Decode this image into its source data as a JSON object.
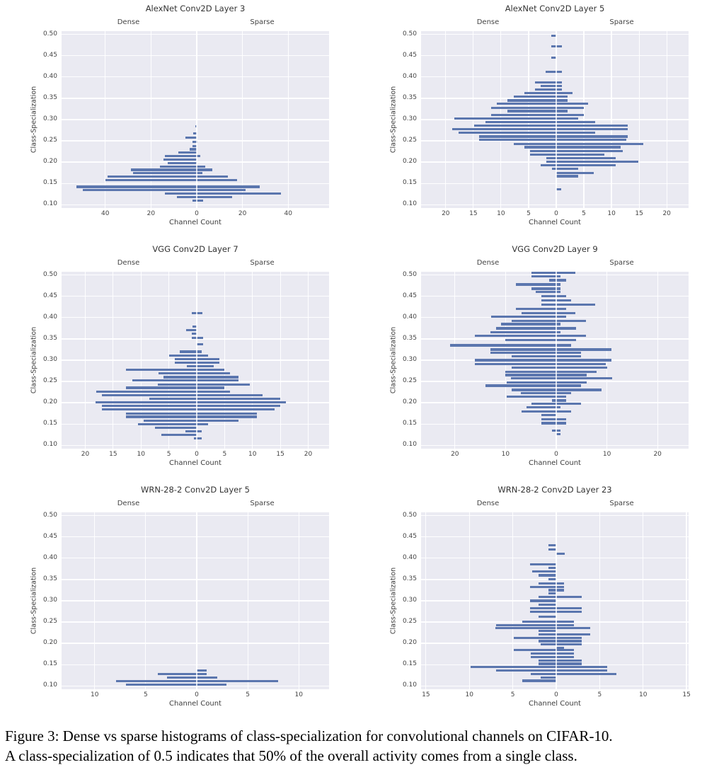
{
  "figure": {
    "caption_line1": "Figure 3: Dense vs sparse histograms of class-specialization for convolutional channels on CIFAR-10.",
    "caption_line2": "A class-specialization of 0.5 indicates that 50% of the overall activity comes from a single class."
  },
  "axes_common": {
    "left_header": "Dense",
    "right_header": "Sparse",
    "xlabel": "Channel Count",
    "ylabel": "Class-Specialization",
    "ylim": [
      0.092,
      0.508
    ],
    "ytick_labels": [
      "0.50",
      "0.45",
      "0.40",
      "0.35",
      "0.30",
      "0.25",
      "0.20",
      "0.15",
      "0.10"
    ],
    "grid": true,
    "colors": {
      "bar": "#5b76ae",
      "plot_background": "#eaeaf2",
      "gridline": "#ffffff",
      "title_text": "#333333",
      "tick_text": "#444444",
      "caption_text": "#000000",
      "page_background": "#ffffff"
    }
  },
  "chart_data": [
    {
      "type": "bar",
      "subtype": "diverging-horizontal-histogram",
      "title": "AlexNet Conv2D Layer 3",
      "xlabel": "Channel Count",
      "ylabel": "Class-Specialization",
      "dense_label": "Dense",
      "sparse_label": "Sparse",
      "xlim": [
        -58.5,
        58.5
      ],
      "xticks": [
        -40,
        -20,
        0,
        20,
        40
      ],
      "xtick_labels": [
        "40",
        "20",
        "0",
        "20",
        "40"
      ],
      "bins_format": [
        "class_specialization",
        "dense_count",
        "sparse_count"
      ],
      "bins": [
        [
          0.284,
          0.7,
          0
        ],
        [
          0.268,
          1.4,
          0
        ],
        [
          0.257,
          5.0,
          0
        ],
        [
          0.248,
          1.9,
          0.4
        ],
        [
          0.238,
          1.9,
          0
        ],
        [
          0.23,
          3.0,
          0
        ],
        [
          0.222,
          8.0,
          0
        ],
        [
          0.214,
          14.0,
          1.5
        ],
        [
          0.206,
          14.7,
          0
        ],
        [
          0.198,
          12.6,
          0
        ],
        [
          0.19,
          16.0,
          3.6
        ],
        [
          0.182,
          28.9,
          6.7
        ],
        [
          0.174,
          27.8,
          2.6
        ],
        [
          0.166,
          38.9,
          13.7
        ],
        [
          0.158,
          40.0,
          17.6
        ],
        [
          0.142,
          52.6,
          27.4
        ],
        [
          0.134,
          49.7,
          21.4
        ],
        [
          0.126,
          14.0,
          36.7
        ],
        [
          0.118,
          8.8,
          15.5
        ],
        [
          0.11,
          1.9,
          2.9
        ]
      ]
    },
    {
      "type": "bar",
      "subtype": "diverging-horizontal-histogram",
      "title": "AlexNet Conv2D Layer 5",
      "xlabel": "Channel Count",
      "ylabel": "Class-Specialization",
      "dense_label": "Dense",
      "sparse_label": "Sparse",
      "xlim": [
        -24.2,
        24.2
      ],
      "xticks": [
        -20,
        -15,
        -10,
        -5,
        0,
        5,
        10,
        15,
        20
      ],
      "xtick_labels": [
        "20",
        "15",
        "10",
        "5",
        "0",
        "5",
        "10",
        "15",
        "20"
      ],
      "bins_format": [
        "class_specialization",
        "dense_count",
        "sparse_count"
      ],
      "bins": [
        [
          0.497,
          0.9,
          0
        ],
        [
          0.472,
          0.9,
          1.0
        ],
        [
          0.446,
          0.9,
          0
        ],
        [
          0.412,
          1.9,
          1.0
        ],
        [
          0.387,
          3.9,
          1.0
        ],
        [
          0.379,
          2.8,
          1.0
        ],
        [
          0.371,
          3.8,
          1.0
        ],
        [
          0.362,
          5.8,
          3.0
        ],
        [
          0.354,
          7.7,
          2.0
        ],
        [
          0.345,
          8.8,
          2.0
        ],
        [
          0.337,
          10.8,
          5.8
        ],
        [
          0.328,
          11.8,
          5.0
        ],
        [
          0.32,
          8.8,
          2.0
        ],
        [
          0.311,
          11.8,
          5.0
        ],
        [
          0.303,
          18.5,
          4.0
        ],
        [
          0.294,
          12.8,
          7.0
        ],
        [
          0.286,
          14.8,
          12.9
        ],
        [
          0.277,
          18.8,
          12.9
        ],
        [
          0.269,
          17.7,
          7.0
        ],
        [
          0.26,
          13.9,
          12.9
        ],
        [
          0.252,
          13.9,
          12.7
        ],
        [
          0.243,
          7.7,
          15.8
        ],
        [
          0.235,
          5.8,
          11.7
        ],
        [
          0.226,
          4.7,
          12.0
        ],
        [
          0.218,
          4.7,
          8.7
        ],
        [
          0.209,
          1.8,
          10.8
        ],
        [
          0.201,
          1.8,
          14.8
        ],
        [
          0.192,
          2.8,
          10.8
        ],
        [
          0.184,
          0.8,
          4.0
        ],
        [
          0.175,
          0,
          6.8
        ],
        [
          0.167,
          0,
          4.0
        ],
        [
          0.136,
          0,
          0.9
        ]
      ]
    },
    {
      "type": "bar",
      "subtype": "diverging-horizontal-histogram",
      "title": "VGG Conv2D Layer 7",
      "xlabel": "Channel Count",
      "ylabel": "Class-Specialization",
      "dense_label": "Dense",
      "sparse_label": "Sparse",
      "xlim": [
        -24.0,
        24.0
      ],
      "xticks": [
        -20,
        -15,
        -10,
        -5,
        0,
        5,
        10,
        15,
        20
      ],
      "xtick_labels": [
        "20",
        "15",
        "10",
        "5",
        "0",
        "5",
        "10",
        "15",
        "20"
      ],
      "bins_format": [
        "class_specialization",
        "dense_count",
        "sparse_count"
      ],
      "bins": [
        [
          0.411,
          0.9,
          1.0
        ],
        [
          0.379,
          0.7,
          0
        ],
        [
          0.371,
          1.9,
          0
        ],
        [
          0.362,
          0.9,
          0
        ],
        [
          0.353,
          0.9,
          1.1
        ],
        [
          0.337,
          0,
          1.1
        ],
        [
          0.32,
          3.0,
          0.9
        ],
        [
          0.311,
          5.0,
          2.0
        ],
        [
          0.303,
          4.0,
          4.0
        ],
        [
          0.294,
          4.0,
          4.0
        ],
        [
          0.286,
          1.8,
          3.0
        ],
        [
          0.277,
          12.7,
          5.0
        ],
        [
          0.269,
          6.8,
          6.0
        ],
        [
          0.26,
          6.0,
          7.5
        ],
        [
          0.252,
          11.6,
          7.5
        ],
        [
          0.243,
          7.0,
          9.5
        ],
        [
          0.235,
          12.7,
          5.0
        ],
        [
          0.226,
          18.0,
          6.0
        ],
        [
          0.218,
          17.0,
          11.8
        ],
        [
          0.209,
          8.5,
          15.0
        ],
        [
          0.201,
          18.2,
          16.0
        ],
        [
          0.192,
          17.0,
          15.0
        ],
        [
          0.184,
          17.0,
          14.0
        ],
        [
          0.175,
          12.7,
          10.8
        ],
        [
          0.167,
          12.7,
          10.8
        ],
        [
          0.158,
          9.5,
          7.5
        ],
        [
          0.15,
          10.6,
          2.0
        ],
        [
          0.141,
          7.5,
          0
        ],
        [
          0.133,
          2.0,
          0.9
        ],
        [
          0.124,
          6.3,
          0
        ],
        [
          0.116,
          0.5,
          0.9
        ]
      ]
    },
    {
      "type": "bar",
      "subtype": "diverging-horizontal-histogram",
      "title": "VGG Conv2D Layer 9",
      "xlabel": "Channel Count",
      "ylabel": "Class-Specialization",
      "dense_label": "Dense",
      "sparse_label": "Sparse",
      "xlim": [
        -26.4,
        26.4
      ],
      "xticks": [
        -20,
        -10,
        0,
        10,
        20
      ],
      "xtick_labels": [
        "20",
        "10",
        "0",
        "10",
        "20"
      ],
      "bins_format": [
        "class_specialization",
        "dense_count",
        "sparse_count"
      ],
      "bins": [
        [
          0.505,
          4.9,
          3.8
        ],
        [
          0.497,
          4.9,
          0.9
        ],
        [
          0.488,
          1.4,
          2.0
        ],
        [
          0.478,
          7.9,
          0.9
        ],
        [
          0.468,
          4.9,
          0.9
        ],
        [
          0.46,
          4.0,
          0.9
        ],
        [
          0.45,
          2.9,
          2.0
        ],
        [
          0.44,
          2.9,
          2.9
        ],
        [
          0.43,
          2.9,
          7.7
        ],
        [
          0.42,
          7.9,
          2.0
        ],
        [
          0.411,
          6.9,
          3.8
        ],
        [
          0.402,
          12.8,
          1.9
        ],
        [
          0.392,
          8.8,
          5.9
        ],
        [
          0.385,
          10.9,
          0.9
        ],
        [
          0.375,
          11.9,
          3.9
        ],
        [
          0.366,
          13.0,
          0.9
        ],
        [
          0.358,
          16.0,
          5.9
        ],
        [
          0.348,
          10.0,
          3.9
        ],
        [
          0.335,
          20.9,
          2.9
        ],
        [
          0.325,
          13.0,
          10.9
        ],
        [
          0.317,
          13.0,
          4.9
        ],
        [
          0.309,
          8.8,
          4.9
        ],
        [
          0.3,
          16.0,
          10.9
        ],
        [
          0.291,
          16.0,
          9.8
        ],
        [
          0.282,
          8.8,
          10.0
        ],
        [
          0.273,
          10.0,
          7.9
        ],
        [
          0.265,
          10.0,
          6.0
        ],
        [
          0.257,
          9.0,
          11.0
        ],
        [
          0.248,
          9.8,
          6.0
        ],
        [
          0.24,
          14.0,
          4.9
        ],
        [
          0.23,
          8.8,
          8.9
        ],
        [
          0.222,
          7.0,
          2.9
        ],
        [
          0.214,
          9.8,
          2.0
        ],
        [
          0.205,
          0.9,
          2.0
        ],
        [
          0.197,
          4.9,
          4.9
        ],
        [
          0.189,
          5.9,
          0.9
        ],
        [
          0.18,
          6.9,
          2.9
        ],
        [
          0.171,
          2.9,
          0
        ],
        [
          0.161,
          2.9,
          2.0
        ],
        [
          0.152,
          2.9,
          2.0
        ],
        [
          0.135,
          0.9,
          0.9
        ],
        [
          0.126,
          0,
          0.9
        ]
      ]
    },
    {
      "type": "bar",
      "subtype": "diverging-horizontal-histogram",
      "title": "WRN-28-2 Conv2D Layer 5",
      "xlabel": "Channel Count",
      "ylabel": "Class-Specialization",
      "dense_label": "Dense",
      "sparse_label": "Sparse",
      "xlim": [
        -13.1,
        13.1
      ],
      "xticks": [
        -10,
        -5,
        0,
        5,
        10
      ],
      "xtick_labels": [
        "10",
        "5",
        "0",
        "5",
        "10"
      ],
      "bins_format": [
        "class_specialization",
        "dense_count",
        "sparse_count"
      ],
      "bins": [
        [
          0.136,
          0,
          1.0
        ],
        [
          0.128,
          3.8,
          1.0
        ],
        [
          0.12,
          2.9,
          2.0
        ],
        [
          0.111,
          7.9,
          8.0
        ],
        [
          0.103,
          6.9,
          2.9
        ]
      ]
    },
    {
      "type": "bar",
      "subtype": "diverging-horizontal-histogram",
      "title": "WRN-28-2 Conv2D Layer 23",
      "xlabel": "Channel Count",
      "ylabel": "Class-Specialization",
      "dense_label": "Dense",
      "sparse_label": "Sparse",
      "xlim": [
        -15.4,
        15.4
      ],
      "xticks": [
        -15,
        -10,
        -5,
        0,
        5,
        10,
        15
      ],
      "xtick_labels": [
        "15",
        "10",
        "5",
        "0",
        "5",
        "10",
        "15"
      ],
      "bins_format": [
        "class_specialization",
        "dense_count",
        "sparse_count"
      ],
      "bins": [
        [
          0.43,
          0.9,
          0
        ],
        [
          0.421,
          0.9,
          0
        ],
        [
          0.411,
          0,
          1.0
        ],
        [
          0.386,
          3.0,
          0
        ],
        [
          0.377,
          0.9,
          0
        ],
        [
          0.369,
          2.8,
          0
        ],
        [
          0.36,
          2.0,
          0
        ],
        [
          0.351,
          0.9,
          0
        ],
        [
          0.341,
          2.0,
          0.9
        ],
        [
          0.333,
          3.0,
          0.9
        ],
        [
          0.325,
          0.9,
          0.9
        ],
        [
          0.317,
          0.9,
          0
        ],
        [
          0.309,
          2.0,
          2.9
        ],
        [
          0.3,
          3.0,
          0
        ],
        [
          0.291,
          2.0,
          0
        ],
        [
          0.283,
          3.0,
          2.9
        ],
        [
          0.274,
          3.0,
          2.9
        ],
        [
          0.262,
          2.0,
          0
        ],
        [
          0.251,
          3.9,
          2.0
        ],
        [
          0.243,
          6.9,
          2.0
        ],
        [
          0.236,
          7.0,
          3.9
        ],
        [
          0.229,
          2.0,
          0
        ],
        [
          0.221,
          2.0,
          3.9
        ],
        [
          0.213,
          4.9,
          2.9
        ],
        [
          0.205,
          2.0,
          2.9
        ],
        [
          0.197,
          1.8,
          2.9
        ],
        [
          0.19,
          0,
          0.9
        ],
        [
          0.184,
          4.9,
          2.0
        ],
        [
          0.176,
          2.9,
          2.0
        ],
        [
          0.168,
          2.9,
          2.0
        ],
        [
          0.16,
          2.0,
          2.9
        ],
        [
          0.152,
          2.0,
          2.9
        ],
        [
          0.144,
          9.9,
          5.9
        ],
        [
          0.136,
          6.9,
          5.9
        ],
        [
          0.128,
          2.9,
          6.9
        ],
        [
          0.12,
          1.8,
          0
        ],
        [
          0.112,
          3.9,
          0
        ]
      ]
    }
  ]
}
